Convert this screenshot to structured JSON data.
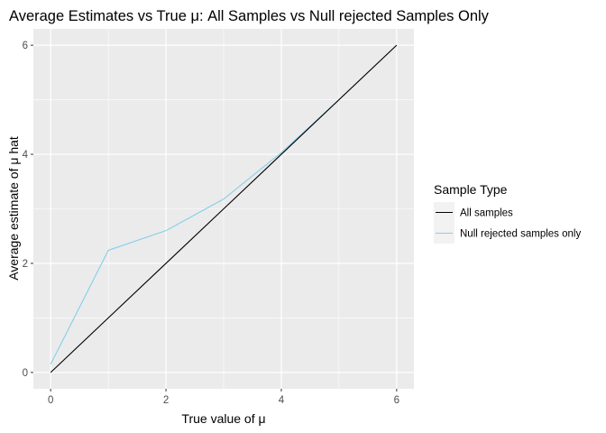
{
  "chart_data": {
    "type": "line",
    "title": "Average Estimates vs True μ: All Samples vs Null rejected Samples Only",
    "xlabel": "True value of μ",
    "ylabel": "Average estimate of μ hat",
    "xlim": [
      -0.3,
      6.3
    ],
    "ylim": [
      -0.3,
      6.3
    ],
    "xticks": [
      0,
      2,
      4,
      6
    ],
    "yticks": [
      0,
      2,
      4,
      6
    ],
    "grid": true,
    "legend": {
      "title": "Sample Type",
      "position": "right"
    },
    "series": [
      {
        "name": "All samples",
        "color": "#000000",
        "x": [
          0,
          1,
          2,
          3,
          4,
          5,
          6
        ],
        "y": [
          0.0,
          1.0,
          2.0,
          3.0,
          4.0,
          5.0,
          6.0
        ]
      },
      {
        "name": "Null rejected samples only",
        "color": "#87CEEB",
        "x": [
          0,
          1,
          2,
          3,
          4,
          5,
          6
        ],
        "y": [
          0.15,
          2.24,
          2.6,
          3.18,
          4.03,
          5.0,
          6.0
        ]
      }
    ]
  }
}
